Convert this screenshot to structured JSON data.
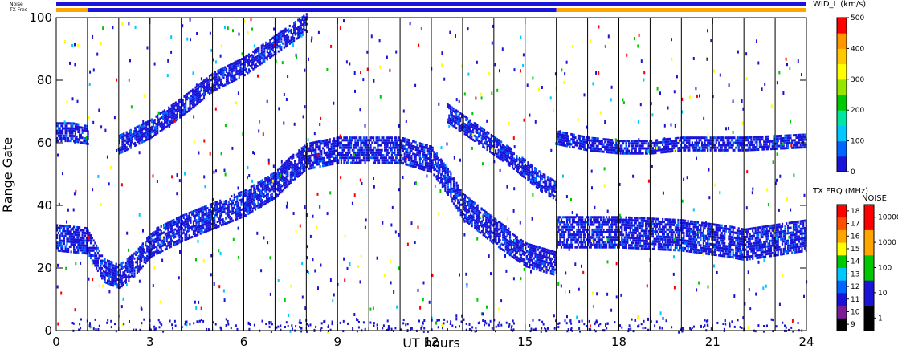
{
  "chart_data": {
    "type": "heatmap",
    "xlabel": "UT hours",
    "ylabel": "Range Gate",
    "xlim": [
      0,
      24
    ],
    "ylim": [
      0,
      100
    ],
    "xticks": [
      "0",
      "3",
      "6",
      "9",
      "12",
      "15",
      "18",
      "21",
      "24"
    ],
    "yticks": [
      "0",
      "20",
      "40",
      "60",
      "80",
      "100"
    ],
    "hour_gridlines": true,
    "status_bars": {
      "noise_label": "Noise",
      "txfreq_label": "TX Freq",
      "noise_segments": [
        {
          "start": 0,
          "end": 24,
          "color": "#1a14d8"
        }
      ],
      "txfreq_segments": [
        {
          "start": 0,
          "end": 1.0,
          "color": "#ffa500"
        },
        {
          "start": 1.0,
          "end": 16.0,
          "color": "#1a14d8"
        },
        {
          "start": 16.0,
          "end": 24,
          "color": "#ffa500"
        }
      ]
    },
    "echo_bands": [
      {
        "name": "main",
        "points": [
          [
            0,
            30
          ],
          [
            1,
            29
          ],
          [
            1.5,
            20
          ],
          [
            2,
            18
          ],
          [
            2.5,
            22
          ],
          [
            3,
            28
          ],
          [
            4,
            33
          ],
          [
            5,
            37
          ],
          [
            6,
            41
          ],
          [
            7,
            47
          ],
          [
            7.5,
            52
          ],
          [
            8,
            56
          ],
          [
            9,
            58
          ],
          [
            10,
            58
          ],
          [
            11,
            58
          ],
          [
            12,
            55
          ],
          [
            12.5,
            48
          ],
          [
            13,
            40
          ],
          [
            14,
            32
          ],
          [
            15,
            25
          ],
          [
            16,
            22
          ]
        ],
        "halfwidth": 4
      },
      {
        "name": "late-low",
        "points": [
          [
            16,
            32
          ],
          [
            18,
            32
          ],
          [
            20,
            31
          ],
          [
            21.5,
            29
          ],
          [
            22,
            28
          ],
          [
            24,
            31
          ]
        ],
        "halfwidth": 5
      },
      {
        "name": "late-high",
        "points": [
          [
            16,
            62
          ],
          [
            17,
            60
          ],
          [
            18,
            59
          ],
          [
            19,
            59
          ],
          [
            20,
            60
          ],
          [
            22,
            60
          ],
          [
            24,
            61
          ]
        ],
        "halfwidth": 2
      },
      {
        "name": "early-high",
        "points": [
          [
            0,
            64
          ],
          [
            0.5,
            64
          ],
          [
            1,
            63
          ]
        ],
        "halfwidth": 3
      },
      {
        "name": "rising-arc",
        "points": [
          [
            2,
            60
          ],
          [
            3,
            65
          ],
          [
            4,
            72
          ],
          [
            5,
            80
          ],
          [
            6,
            85
          ],
          [
            7,
            92
          ],
          [
            8,
            99
          ]
        ],
        "halfwidth": 3
      },
      {
        "name": "evening-arc",
        "points": [
          [
            12.5,
            70
          ],
          [
            13.5,
            63
          ],
          [
            14.5,
            56
          ],
          [
            15.5,
            48
          ],
          [
            16,
            45
          ]
        ],
        "halfwidth": 3
      }
    ],
    "colorbars": [
      {
        "title": "WID_L (km/s)",
        "ticks": [
          "0",
          "100",
          "200",
          "300",
          "400",
          "500"
        ],
        "colors": [
          "#1a14d8",
          "#0064ff",
          "#00c8ff",
          "#00e6a0",
          "#00c800",
          "#96e600",
          "#ffff00",
          "#ffc800",
          "#ff9600",
          "#ff0000"
        ]
      },
      {
        "title": "TX FRQ (MHz)",
        "ticks": [
          "9",
          "10",
          "11",
          "12",
          "13",
          "14",
          "15",
          "16",
          "17",
          "18"
        ],
        "colors": [
          "#000000",
          "#7a1e96",
          "#1a14d8",
          "#0064ff",
          "#00c8ff",
          "#00c800",
          "#ffff00",
          "#ffa500",
          "#ff5000",
          "#ff0000"
        ]
      },
      {
        "title": "NOISE",
        "ticks": [
          "1",
          "10",
          "100",
          "1000",
          "10000"
        ],
        "colors": [
          "#000000",
          "#1a14d8",
          "#00c800",
          "#ffa500",
          "#ff0000"
        ]
      }
    ],
    "palette": {
      "echo_main": "#1a14d8",
      "echo_light": "#0064ff",
      "scatter": [
        "#00c8ff",
        "#00c800",
        "#ffff00",
        "#ff0000"
      ]
    }
  }
}
